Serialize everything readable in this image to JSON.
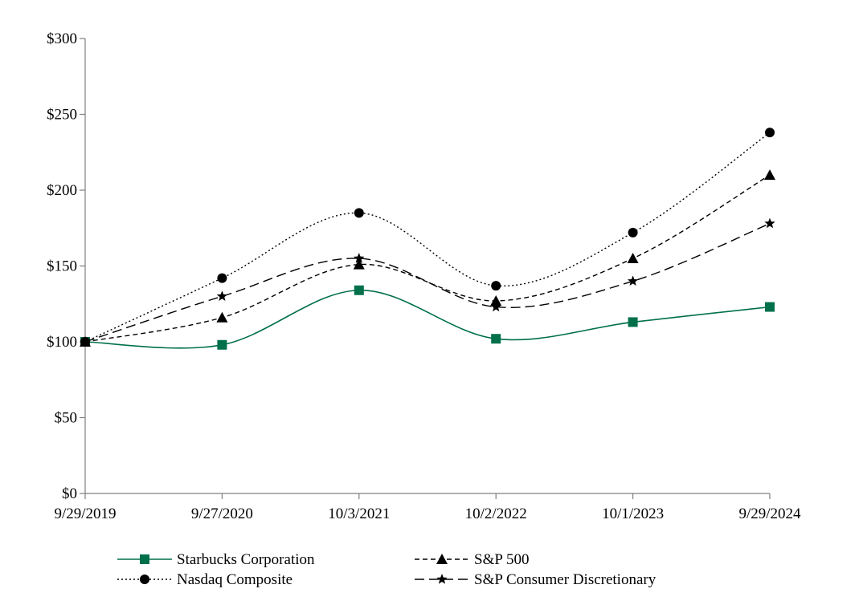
{
  "chart_data": {
    "type": "line",
    "title": "",
    "xlabel": "",
    "ylabel": "",
    "categories": [
      "9/29/2019",
      "9/27/2020",
      "10/3/2021",
      "10/2/2022",
      "10/1/2023",
      "9/29/2024"
    ],
    "ylim": [
      0,
      300
    ],
    "yticks": [
      0,
      50,
      100,
      150,
      200,
      250,
      300
    ],
    "ytick_labels": [
      "$0",
      "$50",
      "$100",
      "$150",
      "$200",
      "$250",
      "$300"
    ],
    "grid": false,
    "legend_position": "bottom",
    "series": [
      {
        "name": "Starbucks Corporation",
        "values": [
          100,
          98,
          134,
          102,
          113,
          123
        ],
        "color": "#00704A",
        "marker": "square",
        "line_style": "solid"
      },
      {
        "name": "S&P 500",
        "values": [
          100,
          116,
          151,
          127,
          155,
          210
        ],
        "color": "#000000",
        "marker": "triangle",
        "line_style": "short-dash"
      },
      {
        "name": "Nasdaq Composite",
        "values": [
          100,
          142,
          185,
          137,
          172,
          238
        ],
        "color": "#000000",
        "marker": "circle",
        "line_style": "dotted"
      },
      {
        "name": "S&P Consumer Discretionary",
        "values": [
          100,
          130,
          155,
          123,
          140,
          178
        ],
        "color": "#000000",
        "marker": "star",
        "line_style": "long-dash"
      }
    ]
  }
}
